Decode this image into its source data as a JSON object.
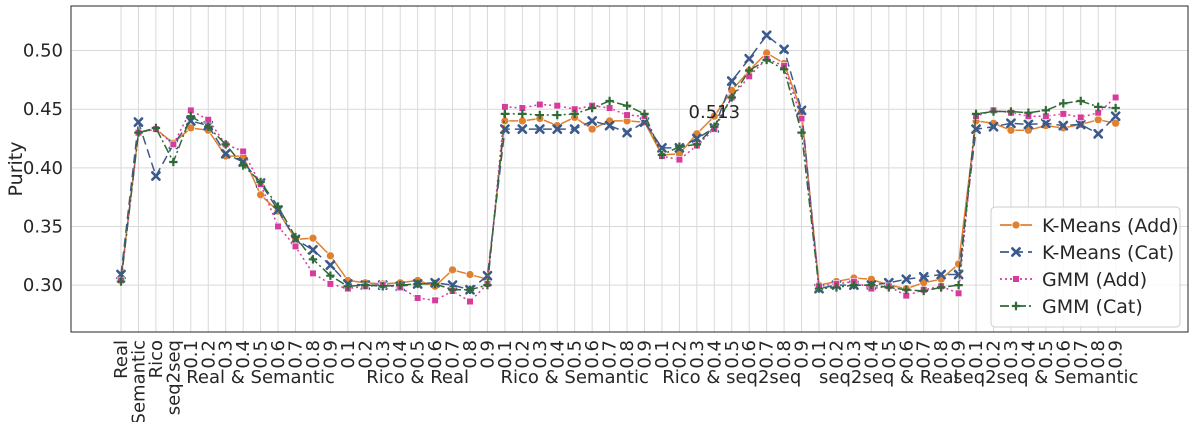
{
  "chart_data": {
    "type": "line",
    "ylabel": "Purity",
    "xlabel": "",
    "ylim": [
      0.26,
      0.538
    ],
    "yticks": [
      0.3,
      0.35,
      0.4,
      0.45,
      0.5
    ],
    "grid": true,
    "legend_position": "bottom-right",
    "annotation": {
      "text": "0.513",
      "series": "K-Means (Cat)",
      "index": 34
    },
    "categories": [
      "Real",
      "Semantic",
      "Rico",
      "seq2seq",
      "0.1",
      "0.2",
      "0.3",
      "0.4",
      "0.5",
      "0.6",
      "0.7",
      "0.8",
      "0.9",
      "0.1",
      "0.2",
      "0.3",
      "0.4",
      "0.5",
      "0.6",
      "0.7",
      "0.8",
      "0.9",
      "0.1",
      "0.2",
      "0.3",
      "0.4",
      "0.5",
      "0.6",
      "0.7",
      "0.8",
      "0.9",
      "0.1",
      "0.2",
      "0.3",
      "0.4",
      "0.5",
      "0.6",
      "0.7",
      "0.8",
      "0.9",
      "0.1",
      "0.2",
      "0.3",
      "0.4",
      "0.5",
      "0.6",
      "0.7",
      "0.8",
      "0.9",
      "0.1",
      "0.2",
      "0.3",
      "0.4",
      "0.5",
      "0.6",
      "0.7",
      "0.8",
      "0.9"
    ],
    "groups": [
      {
        "label": "Real & Semantic",
        "start": 4,
        "end": 12
      },
      {
        "label": "Rico & Real",
        "start": 13,
        "end": 21
      },
      {
        "label": "Rico & Semantic",
        "start": 22,
        "end": 30
      },
      {
        "label": "Rico & seq2seq",
        "start": 31,
        "end": 39
      },
      {
        "label": "seq2seq & Real",
        "start": 40,
        "end": 48
      },
      {
        "label": "seq2seq & Semantic",
        "start": 49,
        "end": 57
      }
    ],
    "series": [
      {
        "name": "K-Means (Add)",
        "color": "#e0812f",
        "dash": "",
        "marker": "circle",
        "values": [
          0.305,
          0.43,
          0.433,
          0.421,
          0.434,
          0.432,
          0.41,
          0.41,
          0.377,
          0.363,
          0.339,
          0.34,
          0.325,
          0.304,
          0.302,
          0.301,
          0.302,
          0.304,
          0.299,
          0.313,
          0.309,
          0.305,
          0.44,
          0.44,
          0.442,
          0.436,
          0.443,
          0.433,
          0.44,
          0.44,
          0.439,
          0.411,
          0.412,
          0.429,
          0.444,
          0.466,
          0.483,
          0.498,
          0.489,
          0.448,
          0.3,
          0.303,
          0.306,
          0.305,
          0.3,
          0.297,
          0.302,
          0.305,
          0.318,
          0.44,
          0.438,
          0.432,
          0.432,
          0.436,
          0.434,
          0.437,
          0.441,
          0.438
        ]
      },
      {
        "name": "K-Means (Cat)",
        "color": "#3b5a8c",
        "dash": "9,5",
        "marker": "x",
        "values": [
          0.309,
          0.439,
          0.393,
          0.42,
          0.44,
          0.436,
          0.412,
          0.405,
          0.387,
          0.364,
          0.339,
          0.33,
          0.317,
          0.301,
          0.3,
          0.3,
          0.299,
          0.301,
          0.302,
          0.3,
          0.296,
          0.308,
          0.433,
          0.433,
          0.433,
          0.433,
          0.433,
          0.44,
          0.436,
          0.43,
          0.439,
          0.417,
          0.417,
          0.425,
          0.434,
          0.474,
          0.493,
          0.513,
          0.501,
          0.449,
          0.297,
          0.3,
          0.3,
          0.3,
          0.302,
          0.305,
          0.307,
          0.309,
          0.309,
          0.433,
          0.435,
          0.438,
          0.437,
          0.438,
          0.436,
          0.437,
          0.429,
          0.444
        ]
      },
      {
        "name": "GMM (Add)",
        "color": "#d63c9b",
        "dash": "2,3",
        "marker": "square",
        "values": [
          0.304,
          0.43,
          0.433,
          0.42,
          0.449,
          0.441,
          0.42,
          0.414,
          0.386,
          0.35,
          0.333,
          0.31,
          0.301,
          0.297,
          0.299,
          0.3,
          0.298,
          0.289,
          0.287,
          0.295,
          0.286,
          0.301,
          0.452,
          0.451,
          0.454,
          0.453,
          0.45,
          0.453,
          0.451,
          0.445,
          0.444,
          0.41,
          0.407,
          0.419,
          0.433,
          0.46,
          0.478,
          0.493,
          0.487,
          0.442,
          0.299,
          0.301,
          0.303,
          0.297,
          0.299,
          0.291,
          0.296,
          0.299,
          0.293,
          0.444,
          0.449,
          0.447,
          0.444,
          0.444,
          0.446,
          0.443,
          0.447,
          0.46
        ]
      },
      {
        "name": "GMM (Cat)",
        "color": "#2f6a36",
        "dash": "9,3,2,3",
        "marker": "plus",
        "values": [
          0.303,
          0.43,
          0.434,
          0.405,
          0.444,
          0.435,
          0.42,
          0.402,
          0.388,
          0.367,
          0.341,
          0.322,
          0.308,
          0.299,
          0.3,
          0.299,
          0.3,
          0.301,
          0.301,
          0.296,
          0.296,
          0.3,
          0.446,
          0.446,
          0.445,
          0.445,
          0.446,
          0.451,
          0.457,
          0.453,
          0.446,
          0.411,
          0.418,
          0.42,
          0.435,
          0.46,
          0.483,
          0.492,
          0.484,
          0.43,
          0.297,
          0.298,
          0.3,
          0.3,
          0.298,
          0.296,
          0.295,
          0.298,
          0.3,
          0.446,
          0.448,
          0.448,
          0.447,
          0.449,
          0.455,
          0.457,
          0.452,
          0.451
        ]
      }
    ]
  }
}
